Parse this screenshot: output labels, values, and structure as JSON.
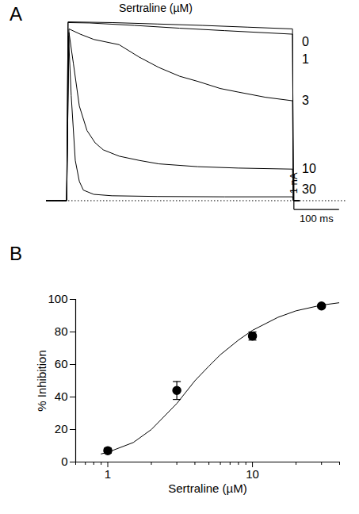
{
  "chart_data": [
    {
      "type": "line",
      "title": "A",
      "subtitle": "Sertraline (µM)",
      "color": "#000000",
      "tick_labels": false,
      "line_style": "solid",
      "xlim": [
        -45,
        620
      ],
      "ylim": [
        -0.6,
        5.6
      ],
      "xticks": [],
      "yticks": [],
      "baseline": 0,
      "scale_bars": [
        {
          "label": "1 nA",
          "value": 1,
          "axis": "y"
        },
        {
          "label": "100 ms",
          "value": 100,
          "axis": "x"
        }
      ],
      "series": [
        {
          "name": "0",
          "x": [
            -45,
            0,
            3,
            100,
            200,
            300,
            400,
            500,
            502,
            515
          ],
          "values": [
            0,
            0,
            5.1,
            5.08,
            5.04,
            5.0,
            4.95,
            4.9,
            0,
            0
          ]
        },
        {
          "name": "1",
          "x": [
            -45,
            0,
            3,
            50,
            150,
            250,
            350,
            500,
            502,
            515
          ],
          "values": [
            0,
            0,
            5.08,
            5.07,
            5.0,
            4.92,
            4.85,
            4.75,
            0,
            0
          ]
        },
        {
          "name": "3",
          "x": [
            -45,
            0,
            5,
            30,
            60,
            116,
            160,
            204,
            250,
            291,
            340,
            379,
            440,
            500,
            502,
            515
          ],
          "values": [
            0,
            0,
            4.9,
            4.75,
            4.6,
            4.45,
            4.1,
            3.8,
            3.55,
            3.4,
            3.2,
            3.1,
            2.95,
            2.85,
            0,
            0
          ]
        },
        {
          "name": "10",
          "x": [
            -45,
            0,
            5,
            15,
            28,
            45,
            63,
            81,
            116,
            160,
            204,
            290,
            379,
            500,
            502,
            515
          ],
          "values": [
            0,
            0,
            4.8,
            3.9,
            2.7,
            2.0,
            1.65,
            1.45,
            1.27,
            1.15,
            1.05,
            0.97,
            0.93,
            0.9,
            0,
            0
          ]
        },
        {
          "name": "30",
          "x": [
            -45,
            0,
            4,
            10,
            19,
            28,
            37,
            60,
            100,
            200,
            350,
            500,
            502,
            515
          ],
          "values": [
            0,
            0,
            4.7,
            3.0,
            1.15,
            0.55,
            0.3,
            0.18,
            0.14,
            0.12,
            0.11,
            0.11,
            0,
            0
          ]
        }
      ]
    },
    {
      "type": "scatter",
      "title": "B",
      "color": "#000000",
      "marker": "circle",
      "log": "x",
      "xlabel": "Sertraline (µM)",
      "ylabel": "% Inhibition",
      "xlim": [
        0.6,
        40
      ],
      "ylim": [
        0,
        100
      ],
      "xticks": [
        1,
        10
      ],
      "minor_xticks": [
        0.6,
        0.7,
        0.8,
        0.9,
        2,
        3,
        4,
        5,
        6,
        7,
        8,
        9,
        20,
        30,
        40
      ],
      "yticks": [
        0,
        20,
        40,
        60,
        80,
        100
      ],
      "x": [
        1,
        3,
        10,
        30
      ],
      "values": [
        7,
        44,
        77.5,
        96
      ],
      "errors": [
        1.5,
        5.5,
        2.5,
        1
      ],
      "fit": {
        "x": [
          0.9,
          1,
          1.5,
          2,
          3,
          4,
          5,
          6,
          8,
          10,
          15,
          20,
          30,
          40
        ],
        "values": [
          5,
          6,
          12,
          20,
          36,
          50,
          59,
          66,
          75,
          81,
          89,
          93,
          96.5,
          98
        ]
      }
    }
  ]
}
